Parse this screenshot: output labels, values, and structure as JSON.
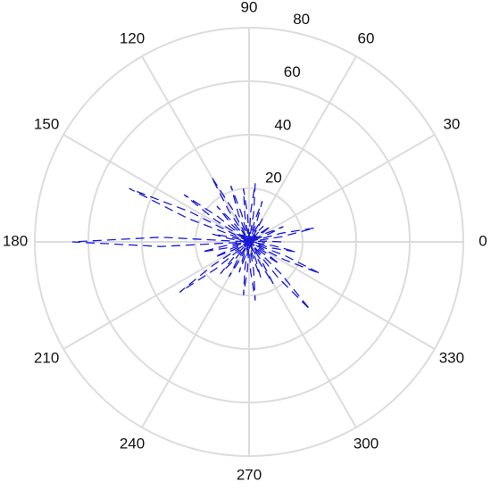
{
  "chart_data": {
    "type": "polar",
    "theta": [
      0,
      3,
      6,
      9,
      12,
      15,
      18,
      21,
      24,
      27,
      30,
      33,
      36,
      39,
      42,
      45,
      48,
      51,
      54,
      57,
      60,
      63,
      66,
      69,
      72,
      75,
      78,
      81,
      84,
      87,
      90,
      93,
      96,
      99,
      102,
      105,
      108,
      111,
      114,
      117,
      120,
      123,
      126,
      129,
      132,
      135,
      138,
      141,
      144,
      147,
      150,
      153,
      156,
      159,
      162,
      165,
      168,
      171,
      174,
      177,
      180,
      183,
      186,
      189,
      192,
      195,
      198,
      201,
      204,
      207,
      210,
      213,
      216,
      219,
      222,
      225,
      228,
      231,
      234,
      237,
      240,
      243,
      246,
      249,
      252,
      255,
      258,
      261,
      264,
      267,
      270,
      273,
      276,
      279,
      282,
      285,
      288,
      291,
      294,
      297,
      300,
      303,
      306,
      309,
      312,
      315,
      318,
      321,
      324,
      327,
      330,
      333,
      336,
      339,
      342,
      345,
      348,
      351,
      354,
      357
    ],
    "r": [
      12,
      6,
      0,
      12.5,
      25,
      12.5,
      0,
      7,
      14,
      7,
      0,
      5,
      10,
      5,
      0,
      4,
      8,
      4,
      0,
      5,
      10,
      5,
      0,
      8,
      16,
      8,
      0,
      11,
      22,
      11,
      0,
      10,
      20,
      10,
      0,
      11,
      22,
      11,
      0,
      14,
      28,
      14,
      0,
      9,
      18,
      9,
      0,
      15,
      30,
      15,
      0,
      24.5,
      49,
      24.5,
      0,
      7,
      14,
      7,
      0,
      33,
      66,
      33,
      0,
      9,
      18,
      9,
      0,
      7,
      14,
      7,
      0,
      16,
      32,
      16,
      0,
      8,
      16,
      8,
      0,
      7.5,
      15,
      7.5,
      0,
      6,
      12,
      6,
      0,
      10,
      20,
      10,
      0,
      11,
      22,
      11,
      0,
      7,
      14,
      7,
      0,
      9,
      18,
      9,
      0,
      17,
      34,
      17,
      0,
      7,
      14,
      7,
      0,
      14.5,
      29,
      14.5,
      0,
      9,
      18,
      9,
      0,
      6
    ],
    "color": "#1a1ad6",
    "rlim": [
      0,
      80
    ],
    "rticks": [
      20,
      40,
      60,
      80
    ],
    "thetaticks": [
      0,
      30,
      60,
      90,
      120,
      150,
      180,
      210,
      240,
      270,
      300,
      330
    ],
    "grid": true
  }
}
